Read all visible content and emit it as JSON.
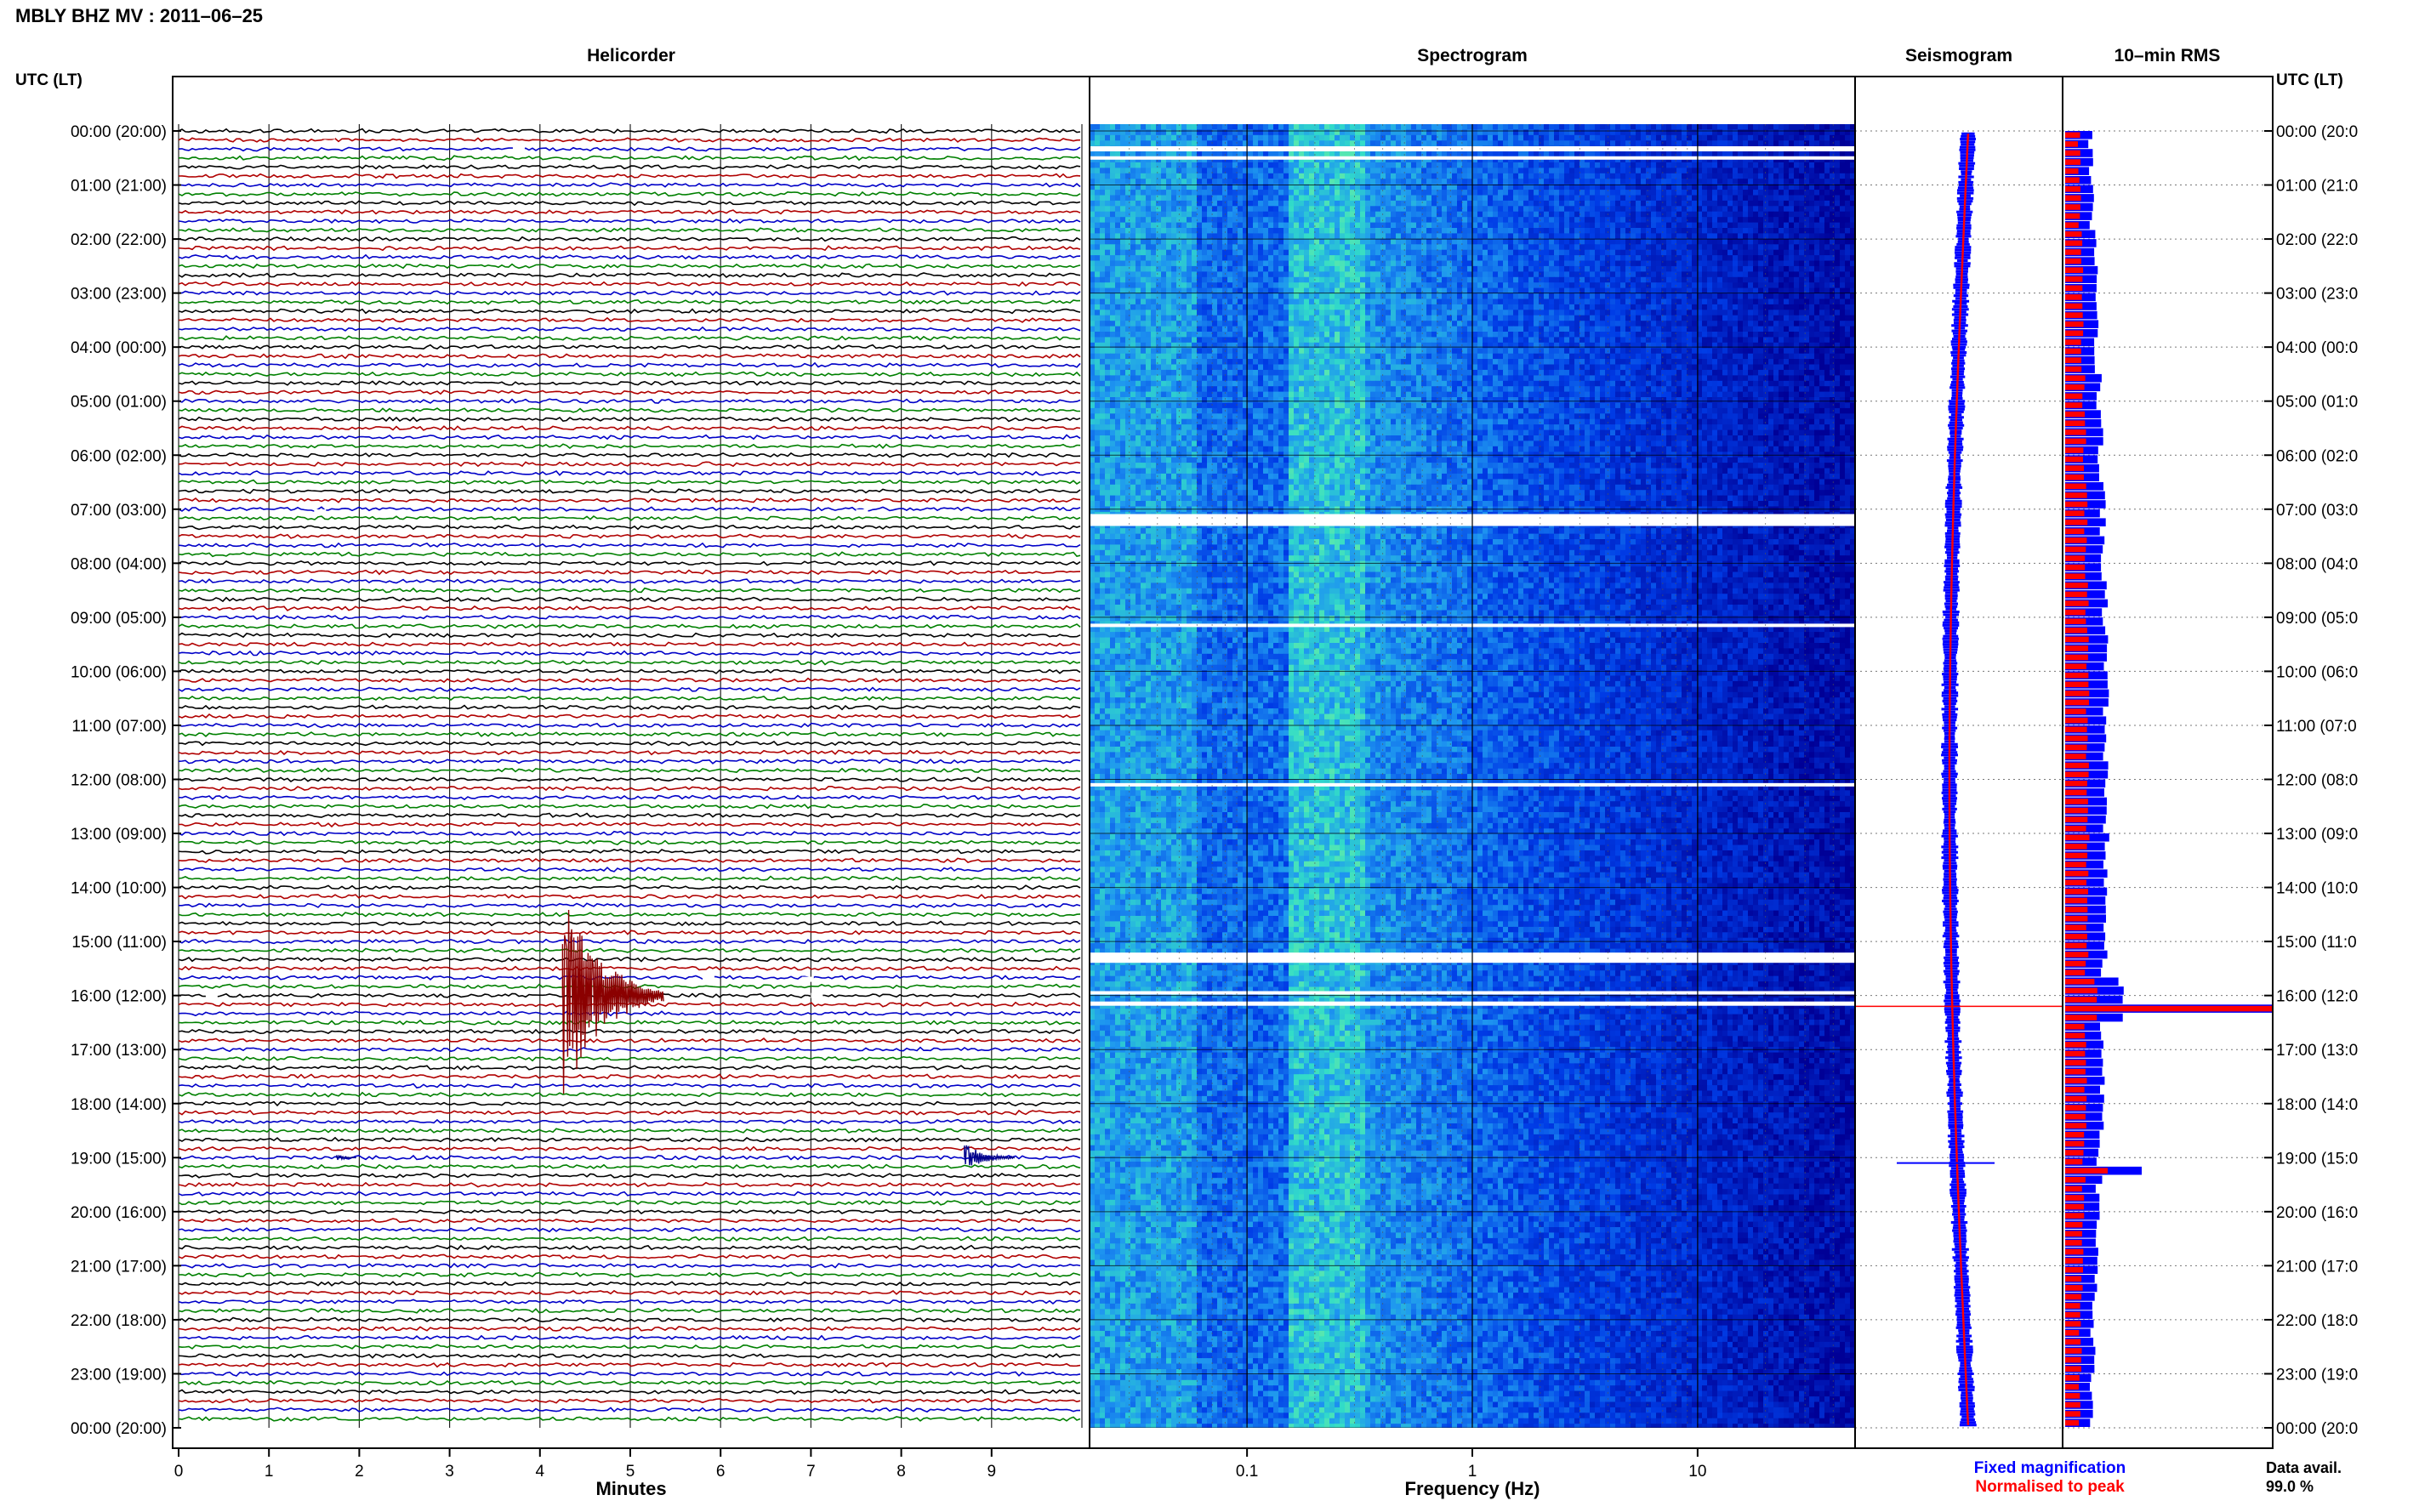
{
  "header": {
    "title": "MBLY BHZ MV : 2011–06–25"
  },
  "axis": {
    "utc_label_left": "UTC (LT)",
    "utc_label_right": "UTC (LT)",
    "hour_labels": [
      "00:00 (20:00)",
      "01:00 (21:00)",
      "02:00 (22:00)",
      "03:00 (23:00)",
      "04:00 (00:00)",
      "05:00 (01:00)",
      "06:00 (02:00)",
      "07:00 (03:00)",
      "08:00 (04:00)",
      "09:00 (05:00)",
      "10:00 (06:00)",
      "11:00 (07:00)",
      "12:00 (08:00)",
      "13:00 (09:00)",
      "14:00 (10:00)",
      "15:00 (11:00)",
      "16:00 (12:00)",
      "17:00 (13:00)",
      "18:00 (14:00)",
      "19:00 (15:00)",
      "20:00 (16:00)",
      "21:00 (17:00)",
      "22:00 (18:00)",
      "23:00 (19:00)",
      "00:00 (20:00)"
    ]
  },
  "helicorder": {
    "title": "Helicorder",
    "xlabel": "Minutes",
    "minute_ticks": [
      "0",
      "1",
      "2",
      "3",
      "4",
      "5",
      "6",
      "7",
      "8",
      "9"
    ],
    "trace_colors": [
      "#000000",
      "#b00000",
      "#0000c8",
      "#008000"
    ],
    "events": [
      {
        "hour": 16.0,
        "minute": 4.25,
        "amplitude": "large",
        "color": "#8b0000"
      },
      {
        "hour": 19.0,
        "minute": 8.7,
        "amplitude": "medium",
        "color": "#00008b"
      },
      {
        "hour": 19.0,
        "minute": 1.75,
        "amplitude": "small",
        "color": "#00008b"
      }
    ]
  },
  "spectrogram": {
    "title": "Spectrogram",
    "xlabel": "Frequency (Hz)",
    "xscale": "log",
    "xlim": [
      0.02,
      50
    ],
    "freq_ticks": [
      "0.1",
      "1",
      "10"
    ],
    "colors": {
      "low": "#0000a0",
      "mid": "#1e90ff",
      "high": "#3ce0c0",
      "peak": "#b0ff80"
    }
  },
  "seismogram": {
    "title": "Seismogram",
    "legend": {
      "fixed": "Fixed magnification",
      "normalised": "Normalised to peak"
    },
    "colors": {
      "fixed": "#0000ff",
      "normalised": "#ff0000"
    }
  },
  "rms": {
    "title": "10–min RMS",
    "colors": {
      "fixed": "#0000ff",
      "normalised": "#ff0000"
    }
  },
  "data_avail": {
    "label": "Data avail.",
    "value": "99.0 %"
  },
  "chart_data": {
    "type": "heatmap",
    "title": "MBLY BHZ MV : 2011–06–25",
    "panels": [
      "Helicorder",
      "Spectrogram",
      "Seismogram",
      "10–min RMS"
    ],
    "y_range_utc_hours": [
      0,
      24
    ],
    "helicorder_x_minutes": [
      0,
      10
    ],
    "spectrogram_freq_hz": [
      0.02,
      50
    ],
    "data_gaps_utc_hours": [
      0.35,
      7.2,
      15.3,
      16.1
    ],
    "peak_event_utc_hours": 16.2,
    "secondary_event_utc_hours": 19.1,
    "data_availability_percent": 99.0
  }
}
